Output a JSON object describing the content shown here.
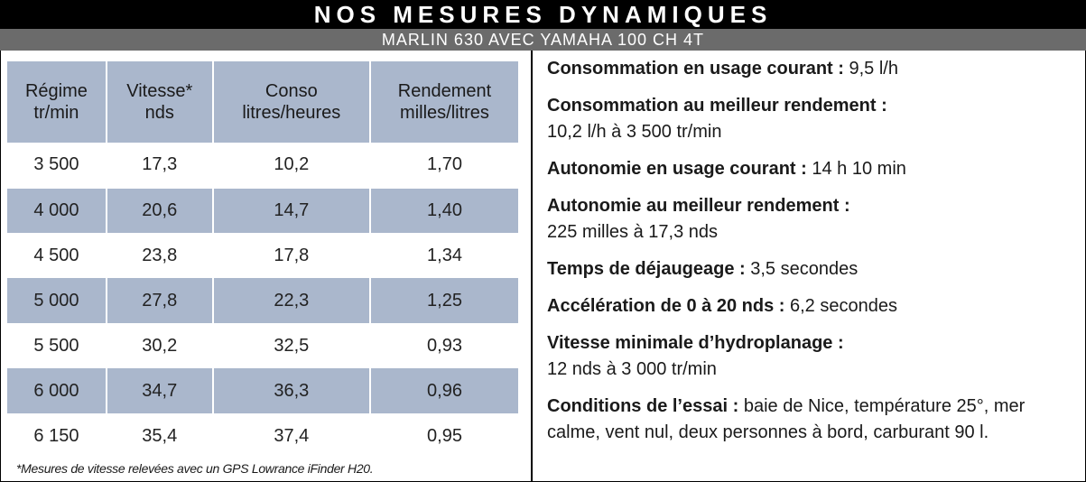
{
  "header": {
    "title": "NOS MESURES DYNAMIQUES",
    "subtitle": "MARLIN 630 AVEC YAMAHA 100 CH 4T"
  },
  "table": {
    "columns": [
      {
        "line1": "Régime",
        "line2": "tr/min"
      },
      {
        "line1": "Vitesse*",
        "line2": "nds"
      },
      {
        "line1": "Conso",
        "line2": "litres/heures"
      },
      {
        "line1": "Rendement",
        "line2": "milles/litres"
      }
    ],
    "rows": [
      [
        "3 500",
        "17,3",
        "10,2",
        "1,70"
      ],
      [
        "4 000",
        "20,6",
        "14,7",
        "1,40"
      ],
      [
        "4 500",
        "23,8",
        "17,8",
        "1,34"
      ],
      [
        "5 000",
        "27,8",
        "22,3",
        "1,25"
      ],
      [
        "5 500",
        "30,2",
        "32,5",
        "0,93"
      ],
      [
        "6 000",
        "34,7",
        "36,3",
        "0,96"
      ],
      [
        "6 150",
        "35,4",
        "37,4",
        "0,95"
      ]
    ],
    "footnote": "*Mesures de vitesse relevées avec un GPS Lowrance iFinder H20."
  },
  "stats": [
    {
      "label": "Consommation en usage courant :",
      "value": " 9,5 l/h"
    },
    {
      "label": "Consommation au meilleur rendement :",
      "value": "10,2 l/h à 3 500 tr/min",
      "block": true
    },
    {
      "label": "Autonomie en usage courant :",
      "value": " 14 h 10 min"
    },
    {
      "label": "Autonomie au meilleur rendement :",
      "value": "225 milles à 17,3 nds",
      "block": true
    },
    {
      "label": "Temps de déjaugeage :",
      "value": " 3,5 secondes"
    },
    {
      "label": "Accélération de 0 à 20 nds :",
      "value": " 6,2 secondes"
    },
    {
      "label": "Vitesse minimale d’hydroplanage :",
      "value": "12 nds à 3 000 tr/min",
      "block": true
    },
    {
      "label": "Conditions de l’essai :",
      "value": " baie de Nice, température 25°, mer calme, vent nul, deux personnes à bord, carburant 90 l."
    }
  ],
  "colors": {
    "title_bg": "#000000",
    "subtitle_bg": "#6b6b6b",
    "row_shade": "#aab7cc"
  }
}
